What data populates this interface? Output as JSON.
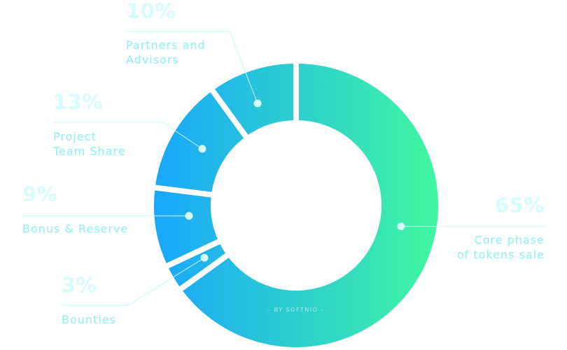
{
  "chart_data": {
    "type": "pie",
    "donut": true,
    "start": "top",
    "direction": "clockwise",
    "slices": [
      {
        "label": "Core phase of tokens sale",
        "label_lines": [
          "Core phase",
          "of tokens sale"
        ],
        "value": 65,
        "value_label": "65%"
      },
      {
        "label": "Bounties",
        "label_lines": [
          "Bounties"
        ],
        "value": 3,
        "value_label": "3%"
      },
      {
        "label": "Bonus & Reserve",
        "label_lines": [
          "Bonus & Reserve"
        ],
        "value": 9,
        "value_label": "9%"
      },
      {
        "label": "Project Team Share",
        "label_lines": [
          "Project",
          "Team Share"
        ],
        "value": 13,
        "value_label": "13%"
      },
      {
        "label": "Partners and Advisors",
        "label_lines": [
          "Partners and",
          "Advisors"
        ],
        "value": 10,
        "value_label": "10%"
      }
    ],
    "gradient": [
      "#1aa6fc",
      "#40f7a0"
    ],
    "label_color": "#8ff0f0",
    "percent_color": "#d6fcfb"
  },
  "credit": "- BY SOFTNIO -"
}
